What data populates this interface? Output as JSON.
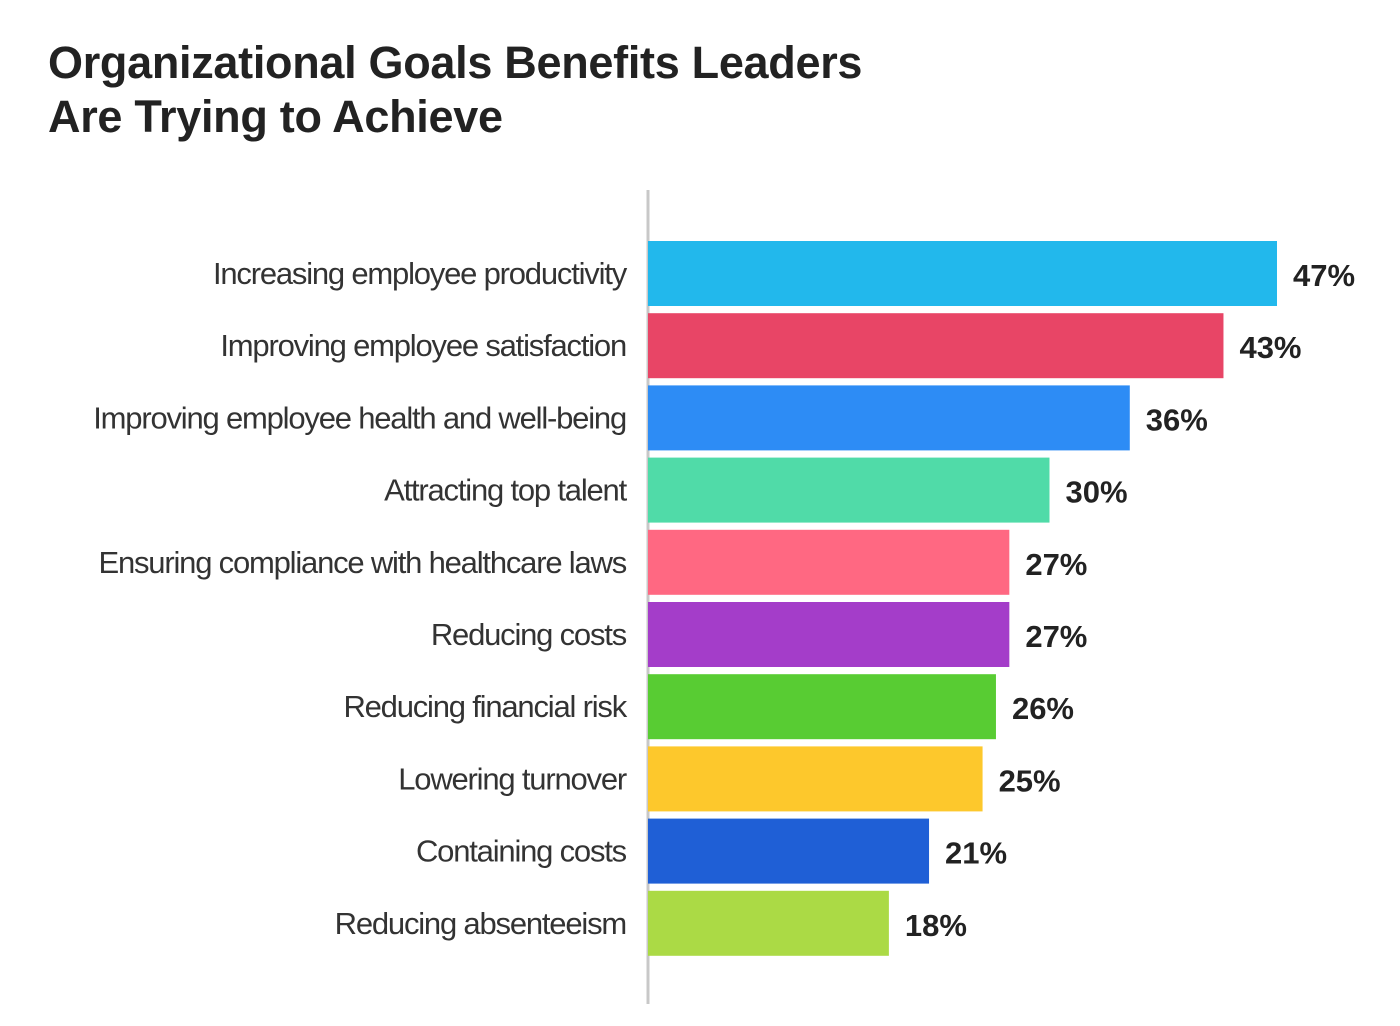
{
  "chart_data": {
    "type": "bar",
    "orientation": "horizontal",
    "title": "Organizational Goals Benefits Leaders Are Trying to Achieve",
    "title_lines": [
      "Organizational Goals Benefits Leaders",
      "Are Trying to Achieve"
    ],
    "categories": [
      "Increasing employee productivity",
      "Improving employee satisfaction",
      "Improving employee health and well-being",
      "Attracting top talent",
      "Ensuring compliance with healthcare laws",
      "Reducing costs",
      "Reducing financial risk",
      "Lowering turnover",
      "Containing costs",
      "Reducing absenteeism"
    ],
    "values": [
      47,
      43,
      36,
      30,
      27,
      27,
      26,
      25,
      21,
      18
    ],
    "value_labels": [
      "47%",
      "43%",
      "36%",
      "30%",
      "27%",
      "27%",
      "26%",
      "25%",
      "21%",
      "18%"
    ],
    "colors": [
      "#22b8ec",
      "#e84566",
      "#2d8cf5",
      "#50dba8",
      "#ff6882",
      "#a43dc9",
      "#58cc33",
      "#fdc82c",
      "#1f5fd6",
      "#abda45"
    ],
    "axis_color": "#c8c8c8",
    "xlabel": "",
    "ylabel": "",
    "xlim": [
      0,
      47
    ],
    "grid": false,
    "legend": "none"
  }
}
